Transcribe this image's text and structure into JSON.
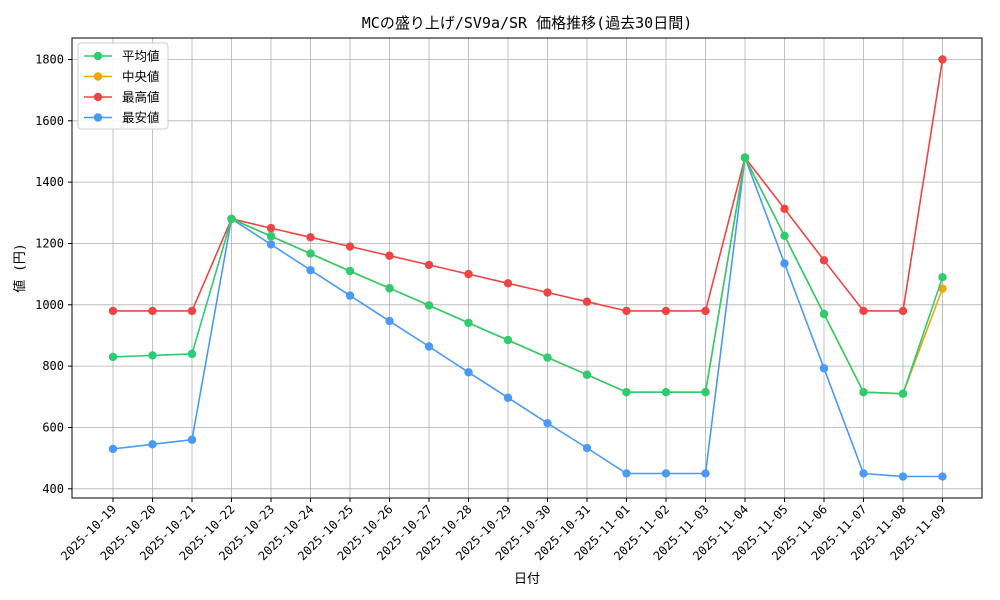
{
  "chart_data": {
    "type": "line",
    "title": "MCの盛り上げ/SV9a/SR 価格推移(過去30日間)",
    "xlabel": "日付",
    "ylabel": "値 (円)",
    "grid": true,
    "legend_position": "top-left",
    "ylim": [
      370,
      1870
    ],
    "yticks": [
      400,
      600,
      800,
      1000,
      1200,
      1400,
      1600,
      1800
    ],
    "categories": [
      "2025-10-19",
      "2025-10-20",
      "2025-10-21",
      "2025-10-22",
      "2025-10-23",
      "2025-10-24",
      "2025-10-25",
      "2025-10-26",
      "2025-10-27",
      "2025-10-28",
      "2025-10-29",
      "2025-10-30",
      "2025-10-31",
      "2025-11-01",
      "2025-11-02",
      "2025-11-03",
      "2025-11-04",
      "2025-11-05",
      "2025-11-06",
      "2025-11-07",
      "2025-11-08",
      "2025-11-09"
    ],
    "series": [
      {
        "name": "平均値",
        "color": "#2ecc71",
        "values": [
          830,
          835,
          840,
          1280,
          1224,
          1167,
          1110,
          1054,
          998,
          941,
          885,
          828,
          772,
          715,
          715,
          715,
          1480,
          1225,
          970,
          715,
          710,
          1090
        ]
      },
      {
        "name": "中央値",
        "color": "#f5a30b",
        "values": [
          null,
          null,
          null,
          1280,
          1224,
          1167,
          1110,
          1054,
          998,
          941,
          885,
          828,
          772,
          715,
          715,
          715,
          1480,
          1225,
          970,
          715,
          710,
          1053
        ]
      },
      {
        "name": "最高値",
        "color": "#ef4444",
        "values": [
          980,
          980,
          980,
          1280,
          1250,
          1220,
          1190,
          1160,
          1130,
          1100,
          1070,
          1040,
          1010,
          980,
          980,
          980,
          1480,
          1313,
          1145,
          980,
          980,
          1800
        ]
      },
      {
        "name": "最安値",
        "color": "#4a9af5",
        "values": [
          530,
          545,
          560,
          1280,
          1197,
          1113,
          1030,
          947,
          864,
          780,
          697,
          614,
          533,
          450,
          450,
          450,
          1480,
          1135,
          793,
          450,
          440,
          440
        ]
      }
    ]
  }
}
